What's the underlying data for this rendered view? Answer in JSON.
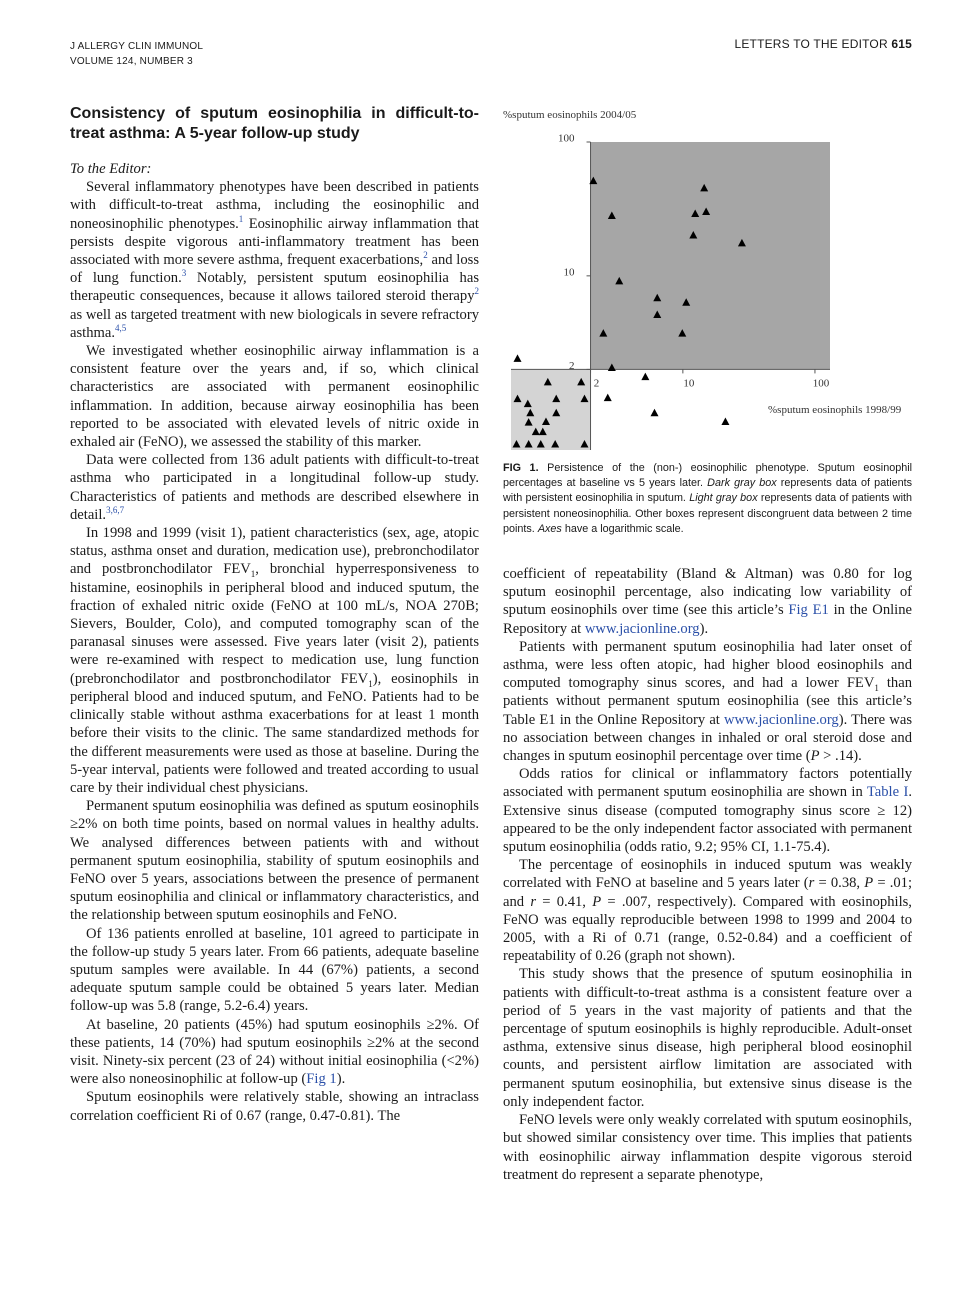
{
  "header": {
    "journal": "J ALLERGY CLIN IMMUNOL",
    "volume": "VOLUME 124, NUMBER 3",
    "section": "LETTERS TO THE EDITOR",
    "page": "615"
  },
  "article": {
    "title": "Consistency of sputum eosinophilia in difficult-to-treat asthma: A 5-year follow-up study",
    "salutation": "To the Editor:",
    "left_paragraphs": [
      [
        "Several inflammatory phenotypes have been described in patients with difficult-to-treat asthma, including the eosinophilic and noneosinophilic phenotypes.",
        {
          "sup": "1"
        },
        " Eosinophilic airway inflammation that persists despite vigorous anti-inflammatory treatment has been associated with more severe asthma, frequent exacerbations,",
        {
          "sup": "2"
        },
        " and loss of lung function.",
        {
          "sup": "3"
        },
        " Notably, persistent sputum eosinophilia has therapeutic consequences, because it allows tailored steroid therapy",
        {
          "sup": "2"
        },
        " as well as targeted treatment with new biologicals in severe refractory asthma.",
        {
          "sup": "4,5"
        }
      ],
      [
        "We investigated whether eosinophilic airway inflammation is a consistent feature over the years and, if so, which clinical characteristics are associated with permanent eosinophilic inflammation. In addition, because airway eosinophilia has been reported to be associated with elevated levels of nitric oxide in exhaled air (FeNO), we assessed the stability of this marker."
      ],
      [
        "Data were collected from 136 adult patients with difficult-to-treat asthma who participated in a longitudinal follow-up study. Characteristics of patients and methods are described elsewhere in detail.",
        {
          "sup": "3,6,7"
        }
      ],
      [
        "In 1998 and 1999 (visit 1), patient characteristics (sex, age, atopic status, asthma onset and duration, medication use), prebronchodilator and postbronchodilator FEV",
        {
          "sub": "1"
        },
        ", bronchial hyperresponsiveness to histamine, eosinophils in peripheral blood and induced sputum, the fraction of exhaled nitric oxide (FeNO at 100 mL/s, NOA 270B; Sievers, Boulder, Colo), and computed tomography scan of the paranasal sinuses were assessed. Five years later (visit 2), patients were re-examined with respect to medication use, lung function (prebronchodilator and postbronchodilator FEV",
        {
          "sub": "1"
        },
        "), eosinophils in peripheral blood and induced sputum, and FeNO. Patients had to be clinically stable without asthma exacerbations for at least 1 month before their visits to the clinic. The same standardized methods for the different measurements were used as those at baseline. During the 5-year interval, patients were followed and treated according to usual care by their individual chest physicians."
      ],
      [
        "Permanent sputum eosinophilia was defined as sputum eosinophils ≥2% on both time points, based on normal values in healthy adults. We analysed differences between patients with and without permanent sputum eosinophilia, stability of sputum eosinophils and FeNO over 5 years, associations between the presence of permanent sputum eosinophilia and clinical or inflammatory characteristics, and the relationship between sputum eosinophils and FeNO."
      ],
      [
        "Of 136 patients enrolled at baseline, 101 agreed to participate in the follow-up study 5 years later. From 66 patients, adequate baseline sputum samples were available. In 44 (67%) patients, a second adequate sputum sample could be obtained 5 years later. Median follow-up was 5.8 (range, 5.2-6.4) years."
      ],
      [
        "At baseline, 20 patients (45%) had sputum eosinophils ≥2%. Of these patients, 14 (70%) had sputum eosinophils ≥2% at the second visit. Ninety-six percent (23 of 24) without initial eosinophilia (<2%) were also noneosinophilic at follow-up (",
        {
          "link": "Fig 1"
        },
        ")."
      ],
      [
        "Sputum eosinophils were relatively stable, showing an intraclass correlation coefficient Ri of 0.67 (range, 0.47-0.81). The"
      ]
    ],
    "right_paragraphs": [
      [
        "coefficient of repeatability (Bland & Altman) was 0.80 for log sputum eosinophil percentage, also indicating low variability of sputum eosinophils over time (see this article’s ",
        {
          "link": "Fig E1"
        },
        " in the Online Repository at ",
        {
          "link": "www.jacionline.org"
        },
        ")."
      ],
      [
        "Patients with permanent sputum eosinophilia had later onset of asthma, were less often atopic, had higher blood eosinophils and computed tomography sinus scores, and had a lower FEV",
        {
          "sub": "1"
        },
        " than patients without permanent sputum eosinophilia (see this article’s Table E1 in the Online Repository at ",
        {
          "link": "www.jacionline.org"
        },
        "). There was no association between changes in inhaled or oral steroid dose and changes in sputum eosinophil percentage over time (",
        {
          "i": "P"
        },
        " > .14)."
      ],
      [
        "Odds ratios for clinical or inflammatory factors potentially associated with permanent sputum eosinophilia are shown in ",
        {
          "link": "Table I"
        },
        ". Extensive sinus disease (computed tomography sinus score ≥ 12) appeared to be the only independent factor associated with permanent sputum eosinophilia (odds ratio, 9.2; 95% CI, 1.1-75.4)."
      ],
      [
        "The percentage of eosinophils in induced sputum was weakly correlated with FeNO at baseline and 5 years later (",
        {
          "i": "r"
        },
        " = 0.38, ",
        {
          "i": "P"
        },
        " = .01; and ",
        {
          "i": "r"
        },
        " = 0.41, ",
        {
          "i": "P"
        },
        " = .007, respectively). Compared with eosinophils, FeNO was equally reproducible between 1998 to 1999 and 2004 to 2005, with a Ri of 0.71 (range, 0.52-0.84) and a coefficient of repeatability of 0.26 (graph not shown)."
      ],
      [
        "This study shows that the presence of sputum eosinophilia in patients with difficult-to-treat asthma is a consistent feature over a period of 5 years in the vast majority of patients and that the percentage of sputum eosinophils is highly reproducible. Adult-onset asthma, extensive sinus disease, high peripheral blood eosinophil counts, and persistent airflow limitation are associated with permanent sputum eosinophilia, but extensive sinus disease is the only independent factor."
      ],
      [
        "FeNO levels were only weakly correlated with sputum eosinophils, but showed similar consistency over time. This implies that patients with eosinophilic airway inflammation despite vigorous steroid treatment do represent a separate phenotype,"
      ]
    ]
  },
  "caption": [
    {
      "b": "FIG 1."
    },
    " Persistence of the (non-) eosinophilic phenotype. Sputum eosinophil percentages at baseline vs 5 years later. ",
    {
      "i": "Dark gray box"
    },
    " represents data of patients with persistent eosinophilia in sputum. ",
    {
      "i": "Light gray box"
    },
    " represents data of patients with persistent noneosinophilia. Other boxes represent discongruent data between 2 time points. ",
    {
      "i": "Axes"
    },
    " have a logarithmic scale."
  ],
  "chart_data": {
    "type": "scatter",
    "x_label": "%sputum eosinophils 1998/99",
    "y_label": "%sputum eosinophils 2004/05",
    "log_scale": true,
    "color": "#000000",
    "xlim": [
      0.5,
      130
    ],
    "ylim": [
      0.5,
      100
    ],
    "xticks": [
      2,
      10,
      100
    ],
    "yticks": [
      2,
      10,
      100
    ],
    "x": [
      2.1,
      14.5,
      2.9,
      12.4,
      15,
      12,
      28,
      3.3,
      6.4,
      10.6,
      6.4,
      2.5,
      9.9,
      2.9,
      5.2,
      2.7,
      6.1,
      21,
      0.56,
      0.95,
      0.56,
      0.67,
      1.7,
      1.1,
      0.7,
      1.1,
      1.8,
      0.68,
      0.92,
      0.77,
      0.87,
      0.55,
      0.68,
      0.84,
      1.08,
      1.8
    ],
    "values": [
      51,
      45,
      28,
      29,
      30,
      20,
      17.5,
      9.1,
      6.8,
      6.3,
      5.1,
      3.7,
      3.7,
      2.05,
      1.75,
      1.22,
      0.94,
      0.81,
      2.4,
      1.6,
      1.2,
      1.1,
      1.6,
      1.2,
      0.94,
      0.94,
      1.2,
      0.8,
      0.81,
      0.68,
      0.68,
      0.55,
      0.55,
      0.55,
      0.55,
      0.55
    ]
  }
}
